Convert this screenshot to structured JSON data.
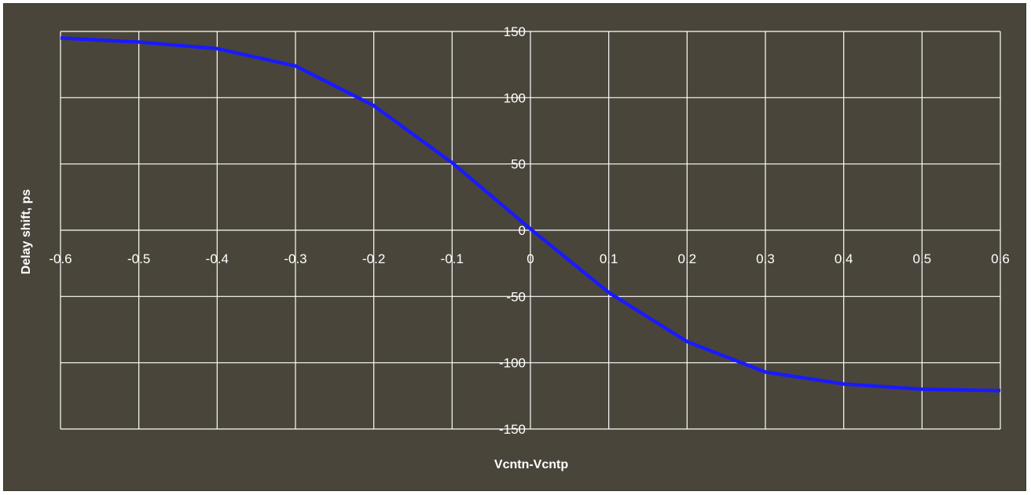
{
  "chart_data": {
    "type": "line",
    "title": "",
    "xlabel": "Vcntn-Vcntp",
    "ylabel": "Delay shift, ps",
    "xlim": [
      -0.6,
      0.6
    ],
    "ylim": [
      -150,
      150
    ],
    "x_ticks": [
      -0.6,
      -0.5,
      -0.4,
      -0.3,
      -0.2,
      -0.1,
      0,
      0.1,
      0.2,
      0.3,
      0.4,
      0.5,
      0.6
    ],
    "x_tick_labels": [
      "-0.6",
      "-0.5",
      "-0.4",
      "-0.3",
      "-0.2",
      "-0.1",
      "0",
      "0.1",
      "0.2",
      "0.3",
      "0.4",
      "0.5",
      "0.6"
    ],
    "y_ticks": [
      150,
      100,
      50,
      0,
      -50,
      -100,
      -150
    ],
    "y_tick_labels": [
      "150",
      "100",
      "50",
      "0",
      "-50",
      "-100",
      "-150"
    ],
    "grid": true,
    "series": [
      {
        "color": "#1a1aff",
        "x": [
          -0.6,
          -0.5,
          -0.4,
          -0.3,
          -0.2,
          -0.1,
          0,
          0.1,
          0.2,
          0.3,
          0.4,
          0.5,
          0.6
        ],
        "y": [
          145,
          142,
          137,
          124,
          94,
          51,
          1,
          -47,
          -84,
          -107,
          -116,
          -120,
          -121
        ]
      }
    ]
  },
  "colors": {
    "background": "#4a453a",
    "grid": "#ffffff",
    "line": "#1a1aff",
    "text": "#ffffff"
  }
}
